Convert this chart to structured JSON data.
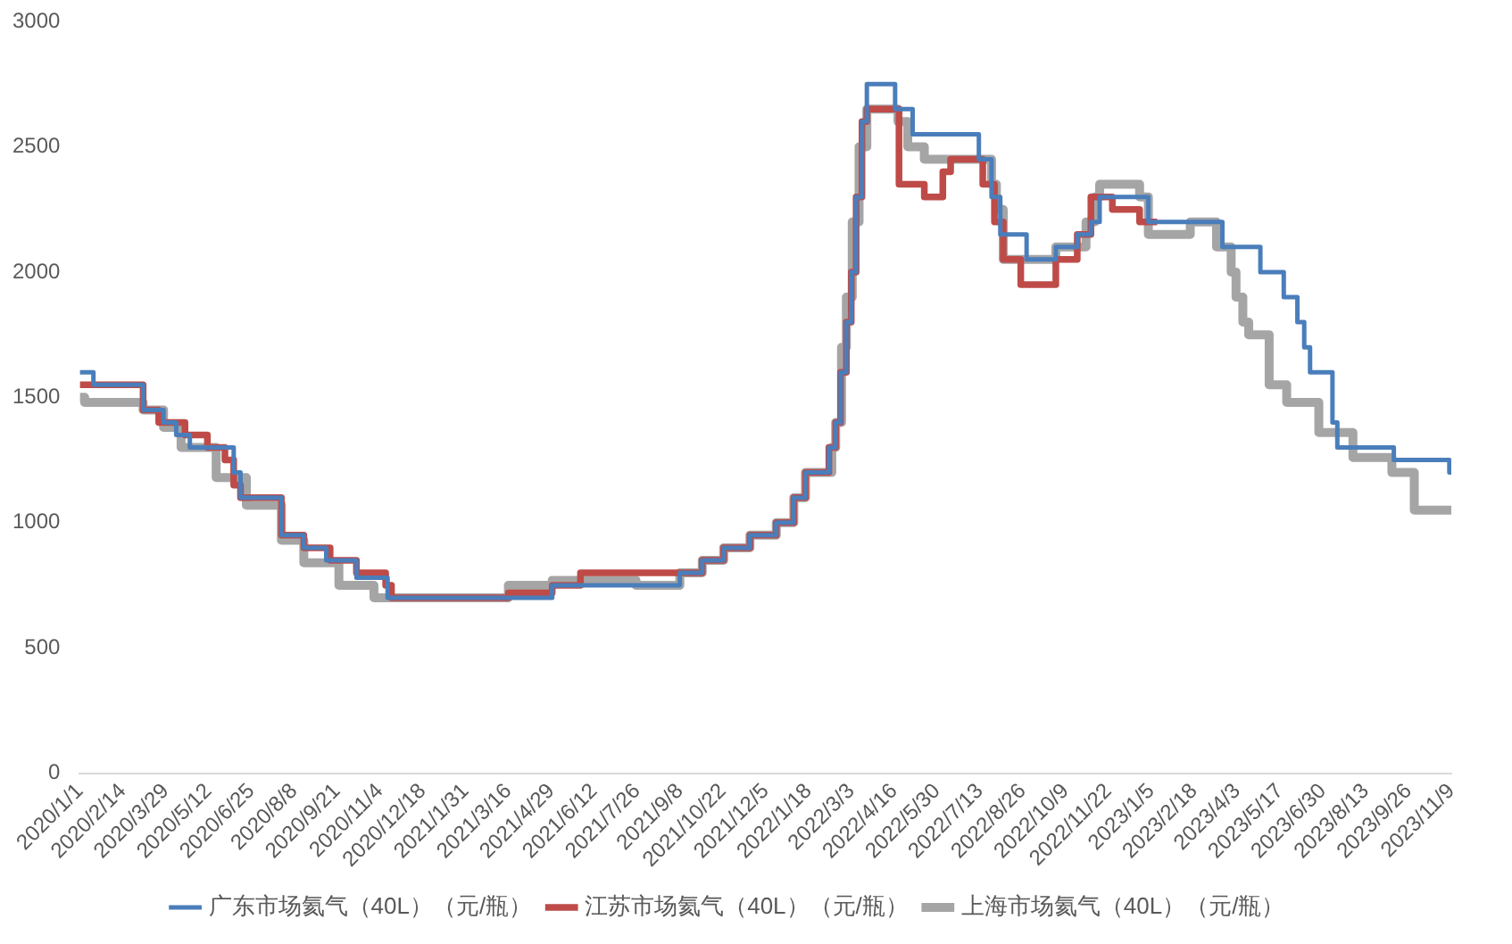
{
  "chart_data": {
    "type": "step",
    "xlim": [
      "2020-01-01",
      "2023-11-09"
    ],
    "xticks": [
      {
        "value": "2020-01-01",
        "label": "2020/1/1"
      },
      {
        "value": "2020-02-14",
        "label": "2020/2/14"
      },
      {
        "value": "2020-03-29",
        "label": "2020/3/29"
      },
      {
        "value": "2020-05-12",
        "label": "2020/5/12"
      },
      {
        "value": "2020-06-25",
        "label": "2020/6/25"
      },
      {
        "value": "2020-08-08",
        "label": "2020/8/8"
      },
      {
        "value": "2020-09-21",
        "label": "2020/9/21"
      },
      {
        "value": "2020-11-04",
        "label": "2020/11/4"
      },
      {
        "value": "2020-12-18",
        "label": "2020/12/18"
      },
      {
        "value": "2021-01-31",
        "label": "2021/1/31"
      },
      {
        "value": "2021-03-16",
        "label": "2021/3/16"
      },
      {
        "value": "2021-04-29",
        "label": "2021/4/29"
      },
      {
        "value": "2021-06-12",
        "label": "2021/6/12"
      },
      {
        "value": "2021-07-26",
        "label": "2021/7/26"
      },
      {
        "value": "2021-09-08",
        "label": "2021/9/8"
      },
      {
        "value": "2021-10-22",
        "label": "2021/10/22"
      },
      {
        "value": "2021-12-05",
        "label": "2021/12/5"
      },
      {
        "value": "2022-01-18",
        "label": "2022/1/18"
      },
      {
        "value": "2022-03-03",
        "label": "2022/3/3"
      },
      {
        "value": "2022-04-16",
        "label": "2022/4/16"
      },
      {
        "value": "2022-05-30",
        "label": "2022/5/30"
      },
      {
        "value": "2022-07-13",
        "label": "2022/7/13"
      },
      {
        "value": "2022-08-26",
        "label": "2022/8/26"
      },
      {
        "value": "2022-10-09",
        "label": "2022/10/9"
      },
      {
        "value": "2022-11-22",
        "label": "2022/11/22"
      },
      {
        "value": "2023-01-05",
        "label": "2023/1/5"
      },
      {
        "value": "2023-02-18",
        "label": "2023/2/18"
      },
      {
        "value": "2023-04-03",
        "label": "2023/4/3"
      },
      {
        "value": "2023-05-17",
        "label": "2023/5/17"
      },
      {
        "value": "2023-06-30",
        "label": "2023/6/30"
      },
      {
        "value": "2023-08-13",
        "label": "2023/8/13"
      },
      {
        "value": "2023-09-26",
        "label": "2023/9/26"
      },
      {
        "value": "2023-11-09",
        "label": "2023/11/9"
      }
    ],
    "ylim": [
      0,
      3000
    ],
    "yticks": [
      0,
      500,
      1000,
      1500,
      2000,
      2500,
      3000
    ],
    "grid": false,
    "legend": "bottom",
    "marker": "none",
    "line_style": "solid",
    "series": [
      {
        "name": "广东市场氦气（40L）（元/瓶）",
        "color": "#4a7ebb",
        "x": [
          "2020-01-01",
          "2020-01-15",
          "2020-03-06",
          "2020-03-27",
          "2020-04-09",
          "2020-04-23",
          "2020-06-07",
          "2020-06-14",
          "2020-07-26",
          "2020-08-18",
          "2020-09-10",
          "2020-10-11",
          "2020-11-12",
          "2021-04-30",
          "2021-09-08",
          "2021-10-01",
          "2021-10-23",
          "2021-11-19",
          "2021-12-16",
          "2022-01-03",
          "2022-01-15",
          "2022-02-08",
          "2022-02-15",
          "2022-02-20",
          "2022-02-26",
          "2022-03-03",
          "2022-03-08",
          "2022-03-14",
          "2022-03-19",
          "2022-04-17",
          "2022-05-05",
          "2022-07-12",
          "2022-07-25",
          "2022-08-03",
          "2022-08-30",
          "2022-09-29",
          "2022-10-21",
          "2022-11-04",
          "2022-11-13",
          "2023-01-02",
          "2023-03-19",
          "2023-04-27",
          "2023-05-21",
          "2023-06-04",
          "2023-06-11",
          "2023-06-17",
          "2023-07-10",
          "2023-07-15",
          "2023-09-11",
          "2023-11-07",
          "2023-11-09"
        ],
        "values": [
          1600,
          1550,
          1450,
          1400,
          1350,
          1300,
          1200,
          1100,
          950,
          900,
          850,
          780,
          700,
          750,
          800,
          850,
          900,
          950,
          1000,
          1100,
          1200,
          1300,
          1400,
          1600,
          1800,
          2000,
          2300,
          2600,
          2750,
          2650,
          2550,
          2450,
          2300,
          2150,
          2050,
          2100,
          2150,
          2200,
          2300,
          2200,
          2100,
          2000,
          1900,
          1800,
          1700,
          1600,
          1400,
          1300,
          1250,
          1200,
          1200
        ]
      },
      {
        "name": "江苏市场氦气（40L）（元/瓶）",
        "color": "#be4b48",
        "x": [
          "2020-01-01",
          "2020-03-06",
          "2020-03-22",
          "2020-04-18",
          "2020-05-11",
          "2020-05-29",
          "2020-06-07",
          "2020-06-14",
          "2020-07-26",
          "2020-08-18",
          "2020-09-14",
          "2020-10-11",
          "2020-11-10",
          "2020-11-16",
          "2021-03-16",
          "2021-04-30",
          "2021-05-29",
          "2021-10-01",
          "2021-10-23",
          "2021-11-19",
          "2021-12-16",
          "2022-01-03",
          "2022-01-15",
          "2022-02-08",
          "2022-02-15",
          "2022-02-20",
          "2022-02-26",
          "2022-03-03",
          "2022-03-08",
          "2022-03-14",
          "2022-03-19",
          "2022-04-21",
          "2022-05-17",
          "2022-06-05",
          "2022-06-13",
          "2022-07-16",
          "2022-07-28",
          "2022-08-06",
          "2022-08-24",
          "2022-09-29",
          "2022-10-21",
          "2022-11-04",
          "2022-11-26",
          "2022-12-24",
          "2023-01-11"
        ],
        "values": [
          1550,
          1450,
          1400,
          1350,
          1300,
          1250,
          1150,
          1100,
          950,
          900,
          850,
          800,
          750,
          700,
          720,
          750,
          800,
          850,
          900,
          950,
          1000,
          1100,
          1200,
          1300,
          1400,
          1600,
          1800,
          2000,
          2300,
          2600,
          2650,
          2350,
          2300,
          2400,
          2450,
          2350,
          2200,
          2050,
          1950,
          2050,
          2150,
          2300,
          2250,
          2200,
          2200
        ]
      },
      {
        "name": "上海市场氦气（40L）（元/瓶）",
        "color": "#a5a5a5",
        "x": [
          "2020-01-01",
          "2020-01-06",
          "2020-03-06",
          "2020-03-27",
          "2020-04-14",
          "2020-05-20",
          "2020-06-20",
          "2020-07-26",
          "2020-08-18",
          "2020-09-23",
          "2020-10-29",
          "2021-03-16",
          "2021-04-30",
          "2021-07-25",
          "2021-09-08",
          "2021-10-01",
          "2021-10-23",
          "2021-11-19",
          "2021-12-16",
          "2022-01-03",
          "2022-01-15",
          "2022-02-11",
          "2022-02-15",
          "2022-02-21",
          "2022-02-26",
          "2022-03-04",
          "2022-03-11",
          "2022-03-19",
          "2022-04-20",
          "2022-04-30",
          "2022-05-17",
          "2022-07-25",
          "2022-07-30",
          "2022-08-06",
          "2022-09-29",
          "2022-10-30",
          "2022-11-08",
          "2022-11-13",
          "2022-12-24",
          "2023-01-02",
          "2023-02-14",
          "2023-03-13",
          "2023-03-28",
          "2023-04-02",
          "2023-04-09",
          "2023-04-15",
          "2023-05-06",
          "2023-05-24",
          "2023-06-26",
          "2023-07-31",
          "2023-09-09",
          "2023-10-02",
          "2023-11-09"
        ],
        "values": [
          1500,
          1480,
          1450,
          1380,
          1300,
          1180,
          1070,
          930,
          840,
          750,
          700,
          750,
          770,
          750,
          800,
          850,
          900,
          950,
          1000,
          1100,
          1200,
          1300,
          1400,
          1700,
          1900,
          2200,
          2500,
          2650,
          2600,
          2500,
          2450,
          2350,
          2250,
          2050,
          2100,
          2200,
          2300,
          2350,
          2300,
          2150,
          2200,
          2100,
          2000,
          1900,
          1800,
          1750,
          1550,
          1480,
          1360,
          1260,
          1200,
          1050,
          1050
        ]
      }
    ]
  }
}
